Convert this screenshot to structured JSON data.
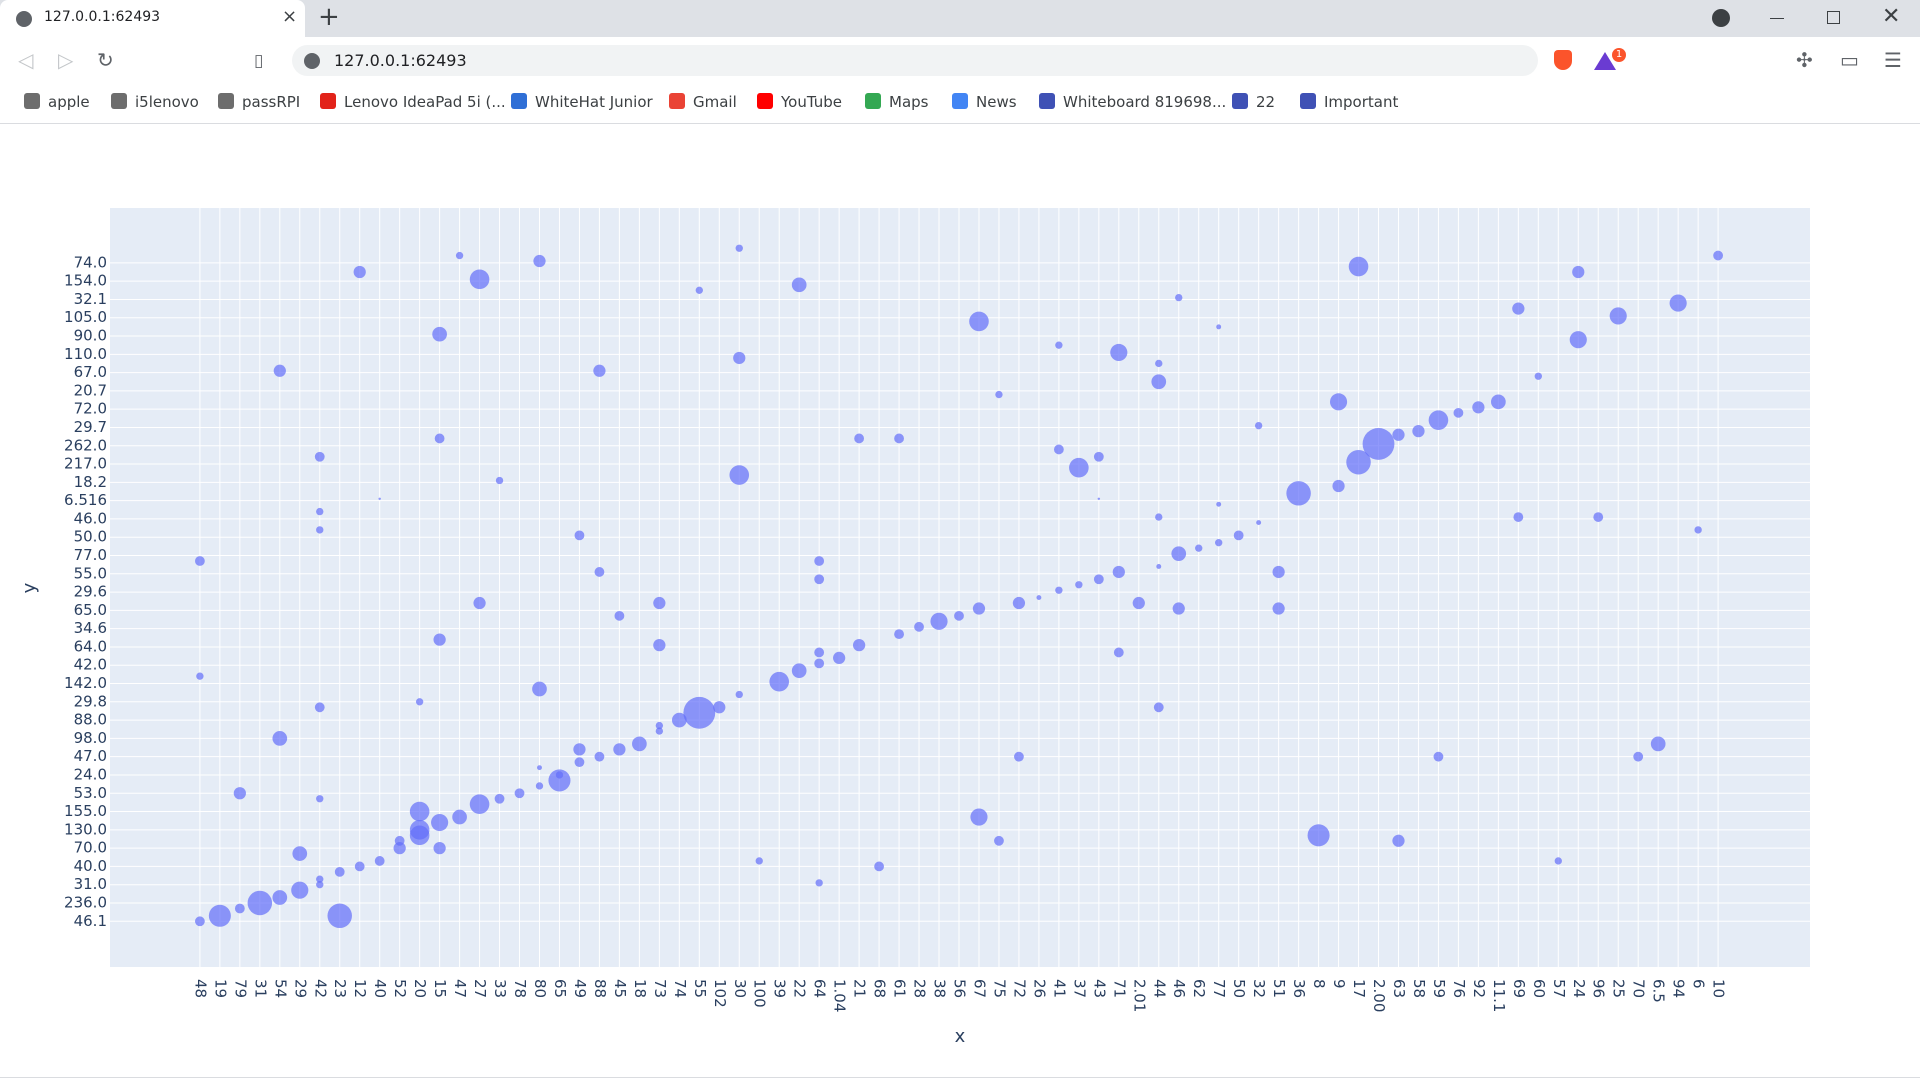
{
  "browser": {
    "tab_title": "127.0.0.1:62493",
    "url": "127.0.0.1:62493",
    "badge": "1",
    "bookmarks": [
      "apple",
      "i5lenovo",
      "passRPI",
      "Lenovo IdeaPad 5i (...",
      "WhiteHat Junior",
      "Gmail",
      "YouTube",
      "Maps",
      "News",
      "Whiteboard 819698...",
      "22",
      "Important"
    ]
  },
  "chart_data": {
    "type": "scatter",
    "x_label": "x",
    "y_label": "y",
    "color": "#636efa",
    "grid": true,
    "xlim": [
      -4.5,
      80.6
    ],
    "ylim": [
      -2.5,
      39
    ],
    "xticks": [
      {
        "value": 0,
        "label": "48"
      },
      {
        "value": 1,
        "label": "19"
      },
      {
        "value": 2,
        "label": "79"
      },
      {
        "value": 3,
        "label": "31"
      },
      {
        "value": 4,
        "label": "54"
      },
      {
        "value": 5,
        "label": "29"
      },
      {
        "value": 6,
        "label": "42"
      },
      {
        "value": 7,
        "label": "23"
      },
      {
        "value": 8,
        "label": "12"
      },
      {
        "value": 9,
        "label": "40"
      },
      {
        "value": 10,
        "label": "52"
      },
      {
        "value": 11,
        "label": "20"
      },
      {
        "value": 12,
        "label": "15"
      },
      {
        "value": 13,
        "label": "47"
      },
      {
        "value": 14,
        "label": "27"
      },
      {
        "value": 15,
        "label": "33"
      },
      {
        "value": 16,
        "label": "78"
      },
      {
        "value": 17,
        "label": "80"
      },
      {
        "value": 18,
        "label": "65"
      },
      {
        "value": 19,
        "label": "49"
      },
      {
        "value": 20,
        "label": "88"
      },
      {
        "value": 21,
        "label": "45"
      },
      {
        "value": 22,
        "label": "18"
      },
      {
        "value": 23,
        "label": "73"
      },
      {
        "value": 24,
        "label": "74"
      },
      {
        "value": 25,
        "label": "55"
      },
      {
        "value": 26,
        "label": "102"
      },
      {
        "value": 27,
        "label": "30"
      },
      {
        "value": 28,
        "label": "100"
      },
      {
        "value": 29,
        "label": "39"
      },
      {
        "value": 30,
        "label": "22"
      },
      {
        "value": 31,
        "label": "64"
      },
      {
        "value": 32,
        "label": "1.04"
      },
      {
        "value": 33,
        "label": "21"
      },
      {
        "value": 34,
        "label": "68"
      },
      {
        "value": 35,
        "label": "61"
      },
      {
        "value": 36,
        "label": "28"
      },
      {
        "value": 37,
        "label": "38"
      },
      {
        "value": 38,
        "label": "56"
      },
      {
        "value": 39,
        "label": "67"
      },
      {
        "value": 40,
        "label": "75"
      },
      {
        "value": 41,
        "label": "72"
      },
      {
        "value": 42,
        "label": "26"
      },
      {
        "value": 43,
        "label": "41"
      },
      {
        "value": 44,
        "label": "37"
      },
      {
        "value": 45,
        "label": "43"
      },
      {
        "value": 46,
        "label": "71"
      },
      {
        "value": 47,
        "label": "2.01"
      },
      {
        "value": 48,
        "label": "44"
      },
      {
        "value": 49,
        "label": "46"
      },
      {
        "value": 50,
        "label": "62"
      },
      {
        "value": 51,
        "label": "77"
      },
      {
        "value": 52,
        "label": "50"
      },
      {
        "value": 53,
        "label": "32"
      },
      {
        "value": 54,
        "label": "51"
      },
      {
        "value": 55,
        "label": "36"
      },
      {
        "value": 56,
        "label": "8"
      },
      {
        "value": 57,
        "label": "9"
      },
      {
        "value": 58,
        "label": "17"
      },
      {
        "value": 59,
        "label": "2.00"
      },
      {
        "value": 60,
        "label": "63"
      },
      {
        "value": 61,
        "label": "58"
      },
      {
        "value": 62,
        "label": "59"
      },
      {
        "value": 63,
        "label": "76"
      },
      {
        "value": 64,
        "label": "92"
      },
      {
        "value": 65,
        "label": "11.1"
      },
      {
        "value": 66,
        "label": "69"
      },
      {
        "value": 67,
        "label": "60"
      },
      {
        "value": 68,
        "label": "57"
      },
      {
        "value": 69,
        "label": "24"
      },
      {
        "value": 70,
        "label": "96"
      },
      {
        "value": 71,
        "label": "25"
      },
      {
        "value": 72,
        "label": "70"
      },
      {
        "value": 73,
        "label": "6.5"
      },
      {
        "value": 74,
        "label": "94"
      },
      {
        "value": 75,
        "label": "6"
      },
      {
        "value": 76,
        "label": "10"
      }
    ],
    "yticks": [
      {
        "value": 0,
        "label": "46.1"
      },
      {
        "value": 1,
        "label": "236.0"
      },
      {
        "value": 2,
        "label": "31.0"
      },
      {
        "value": 3,
        "label": "40.0"
      },
      {
        "value": 4,
        "label": "70.0"
      },
      {
        "value": 5,
        "label": "130.0"
      },
      {
        "value": 6,
        "label": "155.0"
      },
      {
        "value": 7,
        "label": "53.0"
      },
      {
        "value": 8,
        "label": "24.0"
      },
      {
        "value": 9,
        "label": "47.0"
      },
      {
        "value": 10,
        "label": "98.0"
      },
      {
        "value": 11,
        "label": "88.0"
      },
      {
        "value": 12,
        "label": "29.8"
      },
      {
        "value": 13,
        "label": "142.0"
      },
      {
        "value": 14,
        "label": "42.0"
      },
      {
        "value": 15,
        "label": "64.0"
      },
      {
        "value": 16,
        "label": "34.6"
      },
      {
        "value": 17,
        "label": "65.0"
      },
      {
        "value": 18,
        "label": "29.6"
      },
      {
        "value": 19,
        "label": "55.0"
      },
      {
        "value": 20,
        "label": "77.0"
      },
      {
        "value": 21,
        "label": "50.0"
      },
      {
        "value": 22,
        "label": "46.0"
      },
      {
        "value": 23,
        "label": "6.516"
      },
      {
        "value": 24,
        "label": "18.2"
      },
      {
        "value": 25,
        "label": "217.0"
      },
      {
        "value": 26,
        "label": "262.0"
      },
      {
        "value": 27,
        "label": "29.7"
      },
      {
        "value": 28,
        "label": "72.0"
      },
      {
        "value": 29,
        "label": "20.7"
      },
      {
        "value": 30,
        "label": "67.0"
      },
      {
        "value": 31,
        "label": "110.0"
      },
      {
        "value": 32,
        "label": "90.0"
      },
      {
        "value": 33,
        "label": "105.0"
      },
      {
        "value": 34,
        "label": "32.1"
      },
      {
        "value": 35,
        "label": "154.0"
      },
      {
        "value": 36,
        "label": "74.0"
      }
    ],
    "x": [
      0,
      1,
      2,
      3,
      4,
      5,
      6,
      6,
      7,
      8,
      9,
      10,
      10,
      11,
      11,
      11,
      12,
      13,
      14,
      15,
      16,
      17,
      18,
      18,
      19,
      19,
      20,
      21,
      22,
      23,
      23,
      24,
      25,
      26,
      27,
      29,
      30,
      31,
      31,
      32,
      33,
      35,
      36,
      37,
      38,
      39,
      41,
      42,
      43,
      44,
      45,
      46,
      47,
      48,
      49,
      50,
      51,
      52,
      53,
      55,
      57,
      58,
      59,
      60,
      61,
      62,
      63,
      64,
      65,
      67,
      57,
      0,
      0,
      2,
      4,
      4,
      5,
      6,
      6,
      6,
      6,
      6,
      7,
      8,
      9,
      11,
      12,
      12,
      12,
      12,
      13,
      14,
      14,
      15,
      17,
      17,
      17,
      19,
      20,
      20,
      21,
      23,
      23,
      25,
      27,
      27,
      27,
      28,
      30,
      31,
      31,
      31,
      33,
      34,
      35,
      39,
      39,
      40,
      40,
      41,
      43,
      43,
      44,
      45,
      45,
      46,
      46,
      48,
      48,
      48,
      48,
      49,
      49,
      51,
      51,
      53,
      54,
      54,
      56,
      58,
      60,
      62,
      66,
      66,
      68,
      69,
      69,
      70,
      71,
      72,
      73,
      74,
      75,
      76
    ],
    "values": [
      0,
      0.3,
      0.7,
      1.0,
      1.3,
      1.7,
      2.0,
      2.3,
      2.7,
      3.0,
      3.3,
      4.0,
      4.4,
      4.7,
      5.0,
      6.0,
      5.4,
      5.7,
      6.4,
      6.7,
      7.0,
      7.4,
      7.7,
      8.0,
      8.7,
      9.4,
      9.0,
      9.4,
      9.7,
      10.4,
      10.7,
      11.0,
      11.4,
      11.7,
      12.4,
      13.1,
      13.7,
      14.1,
      14.7,
      14.4,
      15.1,
      15.7,
      16.1,
      16.4,
      16.7,
      17.1,
      17.4,
      17.7,
      18.1,
      18.4,
      18.7,
      19.1,
      17.4,
      19.4,
      20.1,
      20.4,
      20.7,
      21.1,
      21.8,
      23.4,
      23.8,
      25.1,
      26.1,
      26.6,
      26.8,
      27.4,
      27.8,
      28.1,
      28.4,
      29.8,
      28.4,
      19.7,
      13.4,
      7.0,
      30.1,
      10.0,
      3.7,
      25.4,
      22.4,
      21.4,
      11.7,
      6.7,
      0.3,
      35.5,
      23.1,
      12.0,
      32.1,
      26.4,
      15.4,
      4.0,
      36.4,
      35.1,
      17.4,
      24.1,
      36.1,
      8.4,
      12.7,
      21.1,
      30.1,
      19.1,
      16.7,
      17.4,
      15.1,
      34.5,
      36.8,
      30.8,
      24.4,
      3.3,
      34.8,
      19.7,
      18.7,
      2.1,
      26.4,
      3.0,
      26.4,
      32.8,
      5.7,
      28.8,
      4.4,
      9.0,
      31.5,
      25.8,
      24.8,
      25.4,
      23.1,
      31.1,
      14.7,
      30.5,
      29.5,
      11.7,
      22.1,
      34.1,
      17.1,
      32.5,
      22.8,
      27.1,
      19.1,
      17.1,
      4.7,
      35.8,
      4.4,
      9.0,
      33.5,
      22.1,
      3.3,
      35.5,
      31.8,
      22.1,
      33.1,
      9.0,
      9.7,
      33.8,
      21.4,
      36.4
    ],
    "sizes": [
      4,
      9,
      4,
      10,
      6,
      7,
      3,
      3,
      4,
      4,
      4,
      5,
      4,
      8,
      8,
      8,
      7,
      6,
      8,
      4,
      4,
      3,
      9,
      3,
      4,
      5,
      4,
      5,
      6,
      3,
      3,
      6,
      13,
      5,
      3,
      8,
      6,
      4,
      4,
      5,
      5,
      4,
      4,
      7,
      4,
      5,
      5,
      2,
      3,
      3,
      4,
      5,
      5,
      2,
      6,
      3,
      3,
      4,
      2,
      10,
      5,
      10,
      13,
      5,
      5,
      8,
      4,
      5,
      6,
      3,
      7,
      4,
      3,
      5,
      5,
      6,
      6,
      4,
      3,
      3,
      4,
      3,
      10,
      5,
      1,
      3,
      6,
      4,
      5,
      5,
      3,
      8,
      5,
      3,
      5,
      2,
      6,
      4,
      5,
      4,
      4,
      5,
      5,
      3,
      3,
      5,
      8,
      3,
      6,
      4,
      4,
      3,
      4,
      4,
      4,
      8,
      7,
      3,
      4,
      4,
      3,
      4,
      8,
      4,
      1,
      7,
      4,
      3,
      6,
      4,
      3,
      3,
      5,
      2,
      2,
      3,
      5,
      5,
      9,
      8,
      5,
      4,
      5,
      4,
      3,
      5,
      7,
      4,
      7,
      4,
      6,
      7,
      3,
      4
    ]
  }
}
